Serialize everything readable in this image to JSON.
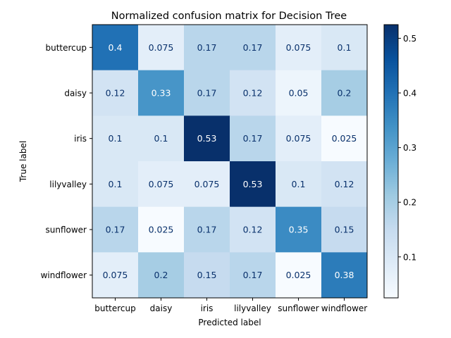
{
  "chart_data": {
    "type": "heatmap",
    "title": "Normalized confusion matrix for Decision Tree",
    "xlabel": "Predicted label",
    "ylabel": "True label",
    "x_categories": [
      "buttercup",
      "daisy",
      "iris",
      "lilyvalley",
      "sunflower",
      "windflower"
    ],
    "y_categories": [
      "buttercup",
      "daisy",
      "iris",
      "lilyvalley",
      "sunflower",
      "windflower"
    ],
    "values": [
      [
        0.4,
        0.075,
        0.17,
        0.17,
        0.075,
        0.1
      ],
      [
        0.12,
        0.33,
        0.17,
        0.12,
        0.05,
        0.2
      ],
      [
        0.1,
        0.1,
        0.53,
        0.17,
        0.075,
        0.025
      ],
      [
        0.1,
        0.075,
        0.075,
        0.53,
        0.1,
        0.12
      ],
      [
        0.17,
        0.025,
        0.17,
        0.12,
        0.35,
        0.15
      ],
      [
        0.075,
        0.2,
        0.15,
        0.17,
        0.025,
        0.38
      ]
    ],
    "colormap": "Blues",
    "colorbar": {
      "range": [
        0.025,
        0.525
      ],
      "ticks": [
        "0.1",
        "0.2",
        "0.3",
        "0.4",
        "0.5"
      ]
    },
    "grid": false
  }
}
